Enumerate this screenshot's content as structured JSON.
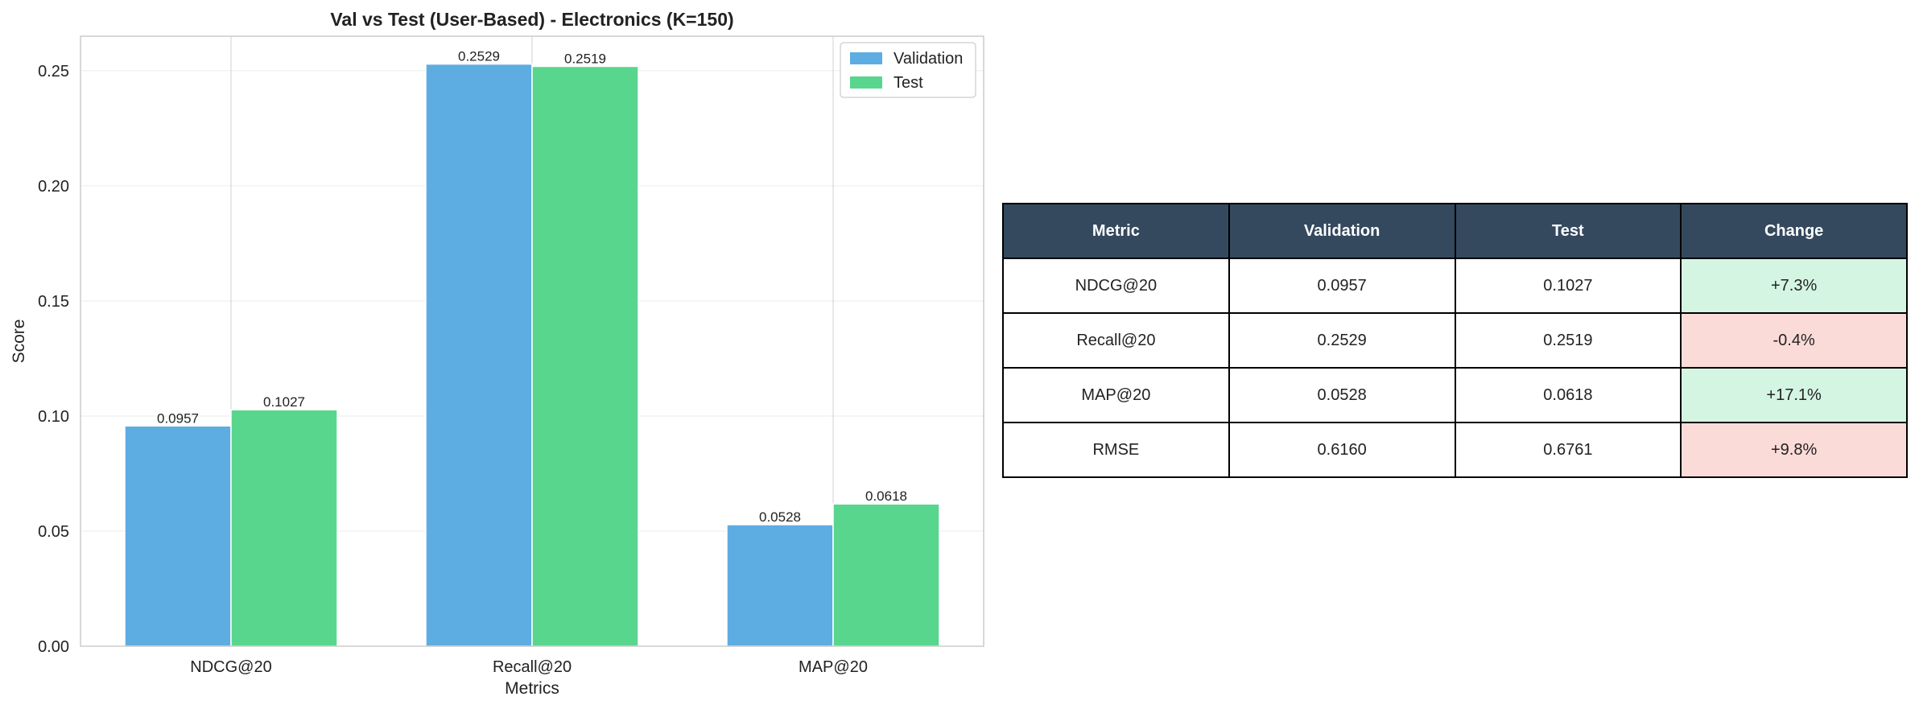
{
  "chart_data": {
    "type": "bar",
    "title": "Val vs Test (User-Based) - Electronics (K=150)",
    "xlabel": "Metrics",
    "ylabel": "Score",
    "ylim": [
      0,
      0.265
    ],
    "yticks": [
      0.0,
      0.05,
      0.1,
      0.15,
      0.2,
      0.25
    ],
    "ytick_labels": [
      "0.00",
      "0.05",
      "0.10",
      "0.15",
      "0.20",
      "0.25"
    ],
    "categories": [
      "NDCG@20",
      "Recall@20",
      "MAP@20"
    ],
    "series": [
      {
        "name": "Validation",
        "values": [
          0.0957,
          0.2529,
          0.0528
        ],
        "labels": [
          "0.0957",
          "0.2529",
          "0.0528"
        ],
        "color": "#5dade2"
      },
      {
        "name": "Test",
        "values": [
          0.1027,
          0.2519,
          0.0618
        ],
        "labels": [
          "0.1027",
          "0.2519",
          "0.0618"
        ],
        "color": "#58d68d"
      }
    ],
    "grid": true,
    "legend": "top-right"
  },
  "table": {
    "headers": [
      "Metric",
      "Validation",
      "Test",
      "Change"
    ],
    "rows": [
      {
        "cells": [
          "NDCG@20",
          "0.0957",
          "0.1027",
          "+7.3%"
        ],
        "status": "up"
      },
      {
        "cells": [
          "Recall@20",
          "0.2529",
          "0.2519",
          "-0.4%"
        ],
        "status": "down"
      },
      {
        "cells": [
          "MAP@20",
          "0.0528",
          "0.0618",
          "+17.1%"
        ],
        "status": "up"
      },
      {
        "cells": [
          "RMSE",
          "0.6160",
          "0.6761",
          "+9.8%"
        ],
        "status": "down"
      }
    ]
  },
  "colors": {
    "header_bg": "#34495e",
    "positive_bg": "#d5f5e3",
    "negative_bg": "#fadbd8"
  }
}
